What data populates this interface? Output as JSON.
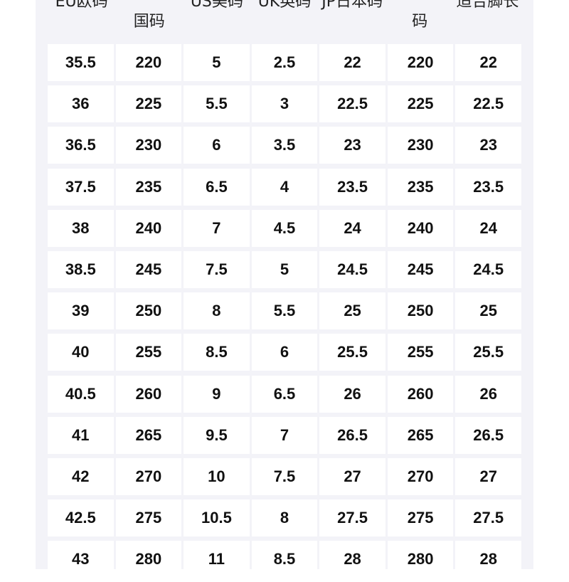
{
  "table": {
    "headers": [
      {
        "line1": "EU欧码",
        "line2": ""
      },
      {
        "line1": "",
        "line2": "国码"
      },
      {
        "line1": "US美码",
        "line2": ""
      },
      {
        "line1": "UK英码",
        "line2": ""
      },
      {
        "line1": "JP日本码",
        "line2": ""
      },
      {
        "line1": "",
        "line2": "码"
      },
      {
        "line1": "适合脚长",
        "line2": ""
      }
    ],
    "rows": [
      [
        "35.5",
        "220",
        "5",
        "2.5",
        "22",
        "220",
        "22"
      ],
      [
        "36",
        "225",
        "5.5",
        "3",
        "22.5",
        "225",
        "22.5"
      ],
      [
        "36.5",
        "230",
        "6",
        "3.5",
        "23",
        "230",
        "23"
      ],
      [
        "37.5",
        "235",
        "6.5",
        "4",
        "23.5",
        "235",
        "23.5"
      ],
      [
        "38",
        "240",
        "7",
        "4.5",
        "24",
        "240",
        "24"
      ],
      [
        "38.5",
        "245",
        "7.5",
        "5",
        "24.5",
        "245",
        "24.5"
      ],
      [
        "39",
        "250",
        "8",
        "5.5",
        "25",
        "250",
        "25"
      ],
      [
        "40",
        "255",
        "8.5",
        "6",
        "25.5",
        "255",
        "25.5"
      ],
      [
        "40.5",
        "260",
        "9",
        "6.5",
        "26",
        "260",
        "26"
      ],
      [
        "41",
        "265",
        "9.5",
        "7",
        "26.5",
        "265",
        "26.5"
      ],
      [
        "42",
        "270",
        "10",
        "7.5",
        "27",
        "270",
        "27"
      ],
      [
        "42.5",
        "275",
        "10.5",
        "8",
        "27.5",
        "275",
        "27.5"
      ],
      [
        "43",
        "280",
        "11",
        "8.5",
        "28",
        "280",
        "28"
      ]
    ]
  }
}
